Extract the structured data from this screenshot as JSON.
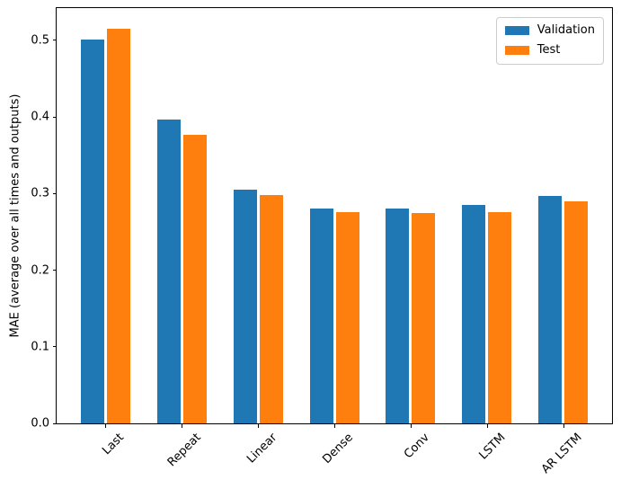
{
  "chart_data": {
    "type": "bar",
    "title": "",
    "xlabel": "",
    "ylabel": "MAE (average over all times and outputs)",
    "categories": [
      "Last",
      "Repeat",
      "Linear",
      "Dense",
      "Conv",
      "LSTM",
      "AR LSTM"
    ],
    "series": [
      {
        "name": "Validation",
        "color": "#1f77b4",
        "values": [
          0.501,
          0.396,
          0.305,
          0.28,
          0.28,
          0.285,
          0.297
        ]
      },
      {
        "name": "Test",
        "color": "#ff7f0e",
        "values": [
          0.515,
          0.377,
          0.298,
          0.276,
          0.274,
          0.276,
          0.29
        ]
      }
    ],
    "ylim": [
      0,
      0.542
    ],
    "yticks": [
      0.0,
      0.1,
      0.2,
      0.3,
      0.4,
      0.5
    ],
    "ytick_decimals": 1,
    "grid": false,
    "x_tick_rotation_deg": 45,
    "legend": {
      "position": "upper-right",
      "items": [
        "Validation",
        "Test"
      ]
    },
    "colors": {
      "axis": "#000000",
      "legend_border": "#cccccc",
      "background": "#ffffff"
    }
  }
}
